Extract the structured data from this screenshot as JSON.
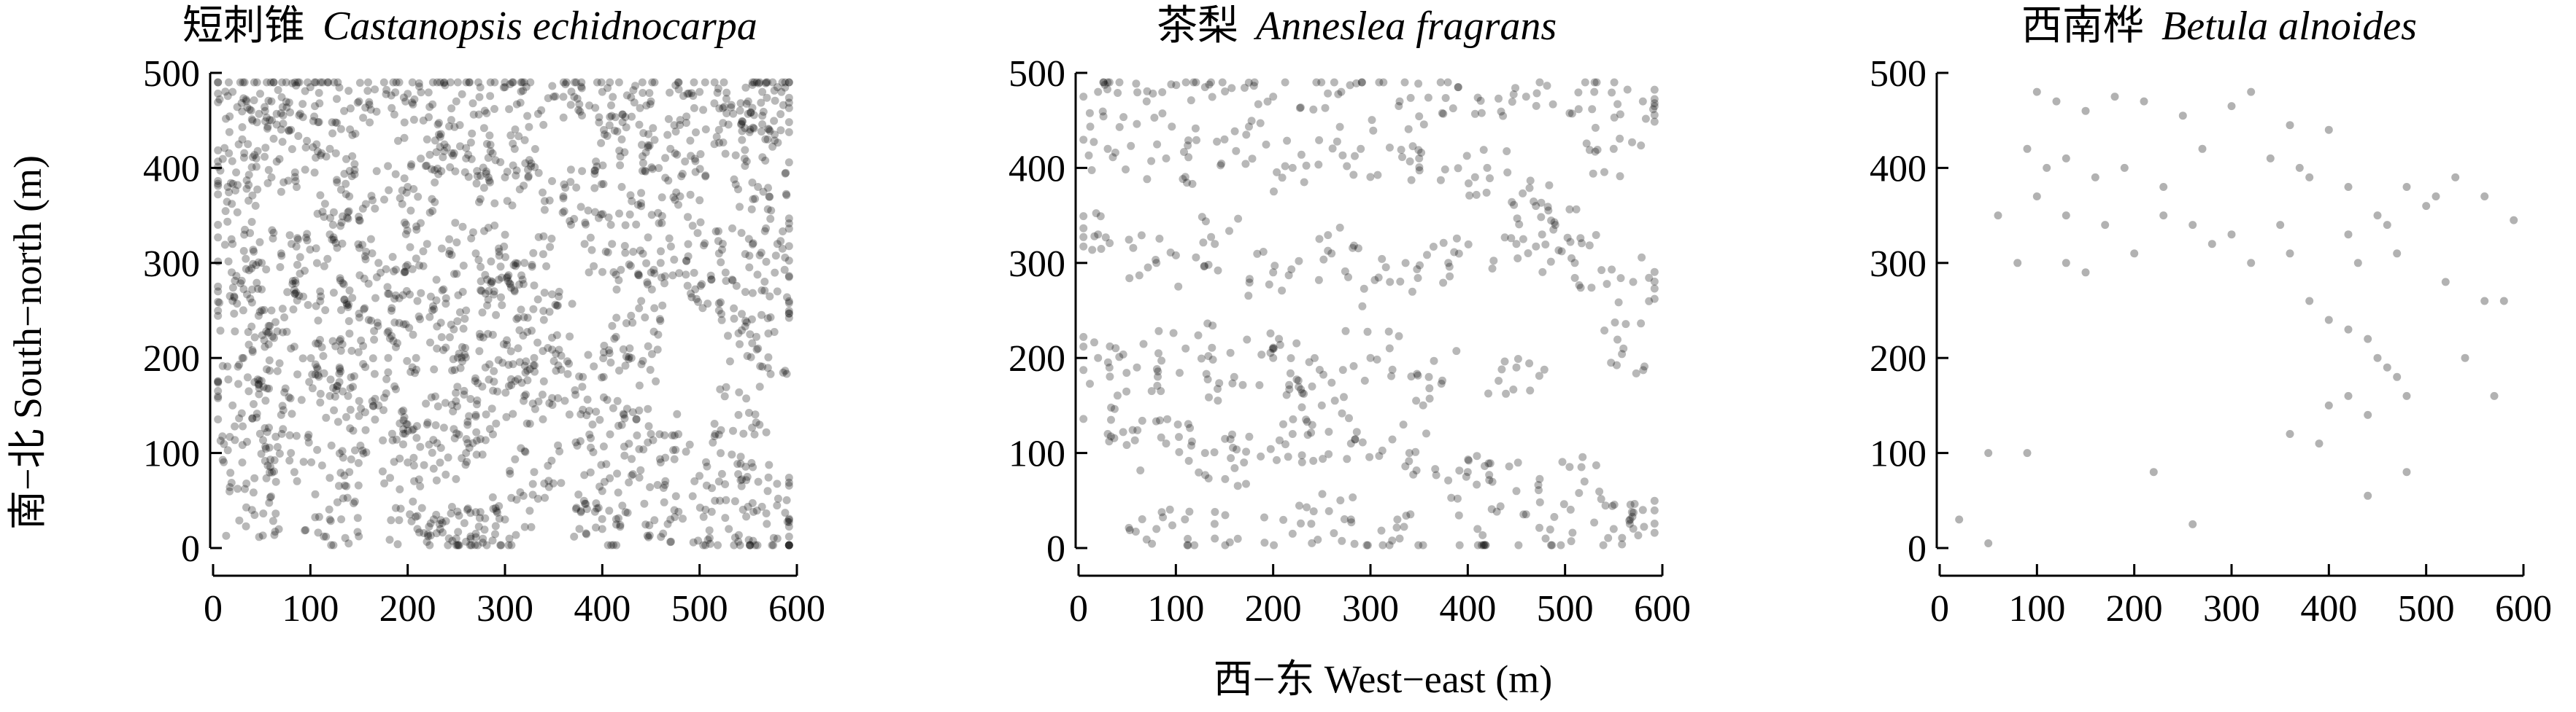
{
  "figure": {
    "ylabel": "南−北 South−north (m)",
    "xlabel": "西−东 West−east (m)"
  },
  "chart_data": [
    {
      "type": "scatter",
      "title_cn": "短刺锥",
      "title_latin": "Castanopsis echidnocarpa",
      "xlim": [
        0,
        600
      ],
      "ylim": [
        0,
        500
      ],
      "xticks": [
        "0",
        "100",
        "200",
        "300",
        "400",
        "500",
        "600"
      ],
      "yticks": [
        "0",
        "100",
        "200",
        "300",
        "400",
        "500"
      ],
      "point_color": "#000000",
      "point_opacity": 0.28,
      "density": "very high",
      "points": [
        [
          20,
          480
        ],
        [
          60,
          470
        ],
        [
          100,
          485
        ],
        [
          150,
          470
        ],
        [
          200,
          478
        ],
        [
          250,
          470
        ],
        [
          300,
          485
        ],
        [
          350,
          475
        ],
        [
          400,
          480
        ],
        [
          450,
          470
        ],
        [
          500,
          480
        ],
        [
          550,
          470
        ],
        [
          580,
          485
        ],
        [
          30,
          430
        ],
        [
          80,
          440
        ],
        [
          120,
          420
        ],
        [
          220,
          430
        ],
        [
          260,
          410
        ],
        [
          310,
          420
        ],
        [
          420,
          430
        ],
        [
          470,
          420
        ],
        [
          520,
          440
        ],
        [
          570,
          430
        ],
        [
          15,
          380
        ],
        [
          60,
          390
        ],
        [
          140,
          370
        ],
        [
          200,
          380
        ],
        [
          300,
          390
        ],
        [
          360,
          370
        ],
        [
          420,
          380
        ],
        [
          480,
          370
        ],
        [
          560,
          380
        ],
        [
          20,
          320
        ],
        [
          70,
          310
        ],
        [
          120,
          330
        ],
        [
          170,
          300
        ],
        [
          220,
          320
        ],
        [
          270,
          310
        ],
        [
          320,
          300
        ],
        [
          410,
          320
        ],
        [
          460,
          300
        ],
        [
          520,
          310
        ],
        [
          580,
          320
        ],
        [
          20,
          260
        ],
        [
          60,
          250
        ],
        [
          110,
          270
        ],
        [
          160,
          240
        ],
        [
          210,
          260
        ],
        [
          260,
          250
        ],
        [
          310,
          270
        ],
        [
          340,
          240
        ],
        [
          440,
          260
        ],
        [
          520,
          250
        ],
        [
          580,
          270
        ],
        [
          30,
          200
        ],
        [
          80,
          210
        ],
        [
          130,
          190
        ],
        [
          180,
          200
        ],
        [
          230,
          210
        ],
        [
          280,
          190
        ],
        [
          330,
          200
        ],
        [
          380,
          180
        ],
        [
          430,
          200
        ],
        [
          560,
          210
        ],
        [
          20,
          150
        ],
        [
          70,
          140
        ],
        [
          120,
          160
        ],
        [
          170,
          150
        ],
        [
          220,
          130
        ],
        [
          270,
          140
        ],
        [
          320,
          160
        ],
        [
          390,
          130
        ],
        [
          450,
          120
        ],
        [
          540,
          140
        ],
        [
          30,
          90
        ],
        [
          80,
          100
        ],
        [
          140,
          80
        ],
        [
          200,
          90
        ],
        [
          260,
          100
        ],
        [
          330,
          80
        ],
        [
          400,
          60
        ],
        [
          460,
          90
        ],
        [
          520,
          70
        ],
        [
          570,
          60
        ],
        [
          40,
          40
        ],
        [
          120,
          30
        ],
        [
          210,
          20
        ],
        [
          250,
          10
        ],
        [
          270,
          15
        ],
        [
          300,
          30
        ],
        [
          400,
          20
        ],
        [
          470,
          30
        ],
        [
          530,
          20
        ],
        [
          580,
          10
        ]
      ]
    },
    {
      "type": "scatter",
      "title_cn": "茶梨",
      "title_latin": "Anneslea fragrans",
      "xlim": [
        0,
        600
      ],
      "ylim": [
        0,
        500
      ],
      "xticks": [
        "0",
        "100",
        "200",
        "300",
        "400",
        "500",
        "600"
      ],
      "yticks": [
        "0",
        "100",
        "200",
        "300",
        "400",
        "500"
      ],
      "point_color": "#000000",
      "point_opacity": 0.28,
      "density": "high",
      "points": [
        [
          20,
          480
        ],
        [
          70,
          470
        ],
        [
          130,
          485
        ],
        [
          200,
          475
        ],
        [
          270,
          480
        ],
        [
          330,
          470
        ],
        [
          390,
          485
        ],
        [
          460,
          475
        ],
        [
          530,
          480
        ],
        [
          580,
          470
        ],
        [
          30,
          420
        ],
        [
          90,
          410
        ],
        [
          150,
          430
        ],
        [
          220,
          400
        ],
        [
          290,
          420
        ],
        [
          350,
          410
        ],
        [
          420,
          400
        ],
        [
          470,
          360
        ],
        [
          490,
          340
        ],
        [
          550,
          420
        ],
        [
          20,
          330
        ],
        [
          80,
          300
        ],
        [
          140,
          320
        ],
        [
          200,
          290
        ],
        [
          260,
          310
        ],
        [
          320,
          280
        ],
        [
          380,
          300
        ],
        [
          450,
          320
        ],
        [
          510,
          300
        ],
        [
          570,
          280
        ],
        [
          20,
          200
        ],
        [
          60,
          190
        ],
        [
          110,
          210
        ],
        [
          160,
          180
        ],
        [
          200,
          200
        ],
        [
          240,
          170
        ],
        [
          250,
          150
        ],
        [
          300,
          200
        ],
        [
          360,
          180
        ],
        [
          450,
          190
        ],
        [
          560,
          210
        ],
        [
          30,
          120
        ],
        [
          90,
          110
        ],
        [
          130,
          100
        ],
        [
          170,
          90
        ],
        [
          220,
          120
        ],
        [
          280,
          110
        ],
        [
          340,
          100
        ],
        [
          400,
          80
        ],
        [
          450,
          60
        ],
        [
          520,
          70
        ],
        [
          580,
          40
        ],
        [
          80,
          20
        ],
        [
          140,
          10
        ],
        [
          220,
          15
        ],
        [
          280,
          30
        ],
        [
          330,
          10
        ],
        [
          410,
          20
        ],
        [
          480,
          10
        ],
        [
          550,
          20
        ]
      ]
    },
    {
      "type": "scatter",
      "title_cn": "西南桦",
      "title_latin": "Betula alnoides",
      "xlim": [
        0,
        600
      ],
      "ylim": [
        0,
        500
      ],
      "xticks": [
        "0",
        "100",
        "200",
        "300",
        "400",
        "500",
        "600"
      ],
      "yticks": [
        "0",
        "100",
        "200",
        "300",
        "400",
        "500"
      ],
      "point_color": "#000000",
      "point_opacity": 0.3,
      "density": "low",
      "points": [
        [
          100,
          480
        ],
        [
          120,
          470
        ],
        [
          150,
          460
        ],
        [
          180,
          475
        ],
        [
          210,
          470
        ],
        [
          250,
          455
        ],
        [
          300,
          465
        ],
        [
          320,
          480
        ],
        [
          360,
          445
        ],
        [
          400,
          440
        ],
        [
          90,
          420
        ],
        [
          110,
          400
        ],
        [
          130,
          410
        ],
        [
          160,
          390
        ],
        [
          190,
          400
        ],
        [
          230,
          380
        ],
        [
          270,
          420
        ],
        [
          340,
          410
        ],
        [
          370,
          400
        ],
        [
          380,
          390
        ],
        [
          420,
          380
        ],
        [
          480,
          380
        ],
        [
          530,
          390
        ],
        [
          560,
          370
        ],
        [
          590,
          345
        ],
        [
          100,
          370
        ],
        [
          130,
          350
        ],
        [
          170,
          340
        ],
        [
          230,
          350
        ],
        [
          260,
          340
        ],
        [
          300,
          330
        ],
        [
          350,
          340
        ],
        [
          420,
          330
        ],
        [
          450,
          350
        ],
        [
          460,
          340
        ],
        [
          500,
          360
        ],
        [
          510,
          370
        ],
        [
          60,
          350
        ],
        [
          80,
          300
        ],
        [
          130,
          300
        ],
        [
          150,
          290
        ],
        [
          200,
          310
        ],
        [
          280,
          320
        ],
        [
          320,
          300
        ],
        [
          360,
          310
        ],
        [
          380,
          260
        ],
        [
          430,
          300
        ],
        [
          470,
          310
        ],
        [
          520,
          280
        ],
        [
          560,
          260
        ],
        [
          580,
          260
        ],
        [
          400,
          240
        ],
        [
          420,
          230
        ],
        [
          440,
          220
        ],
        [
          450,
          200
        ],
        [
          460,
          190
        ],
        [
          470,
          180
        ],
        [
          420,
          160
        ],
        [
          400,
          150
        ],
        [
          440,
          140
        ],
        [
          480,
          160
        ],
        [
          540,
          200
        ],
        [
          570,
          160
        ],
        [
          50,
          100
        ],
        [
          90,
          100
        ],
        [
          220,
          80
        ],
        [
          260,
          25
        ],
        [
          440,
          55
        ],
        [
          480,
          80
        ],
        [
          20,
          30
        ],
        [
          50,
          5
        ],
        [
          390,
          110
        ],
        [
          360,
          120
        ]
      ]
    }
  ]
}
